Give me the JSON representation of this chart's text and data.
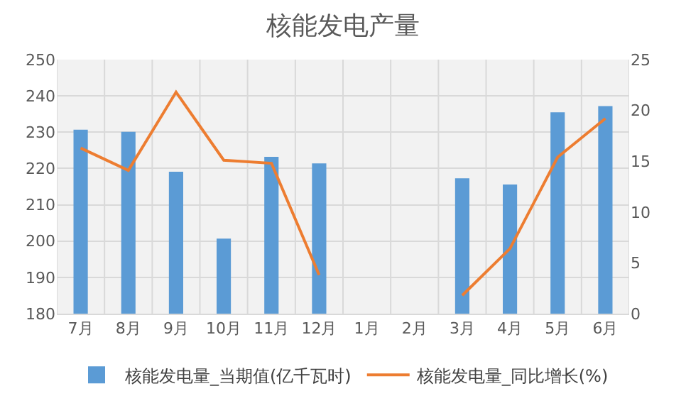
{
  "chart_data": {
    "type": "bar",
    "title": "核能发电产量",
    "categories": [
      "7月",
      "8月",
      "9月",
      "10月",
      "11月",
      "12月",
      "1月",
      "2月",
      "3月",
      "4月",
      "5月",
      "6月"
    ],
    "series": [
      {
        "name": "核能发电量_当期值(亿千瓦时)",
        "color": "#5b9bd5",
        "values": [
          230.7,
          230.1,
          219.1,
          200.7,
          223.2,
          221.4,
          null,
          null,
          217.3,
          215.6,
          235.5,
          237.2
        ]
      },
      {
        "name": "核能发电量_同比增长(%)",
        "type": "line",
        "axis": "y2",
        "color": "#ed7d31",
        "values": [
          16.3,
          14.1,
          21.8,
          15.1,
          14.8,
          3.8,
          null,
          null,
          1.8,
          6.4,
          15.4,
          19.2
        ]
      }
    ],
    "ylim": [
      180,
      250
    ],
    "yticks": [
      180,
      190,
      200,
      210,
      220,
      230,
      240,
      250
    ],
    "y2lim": [
      0,
      25
    ],
    "y2ticks": [
      0,
      5,
      10,
      15,
      20,
      25
    ],
    "grid": true,
    "legend": "bottom",
    "marker": "none",
    "line_style": "solid"
  }
}
